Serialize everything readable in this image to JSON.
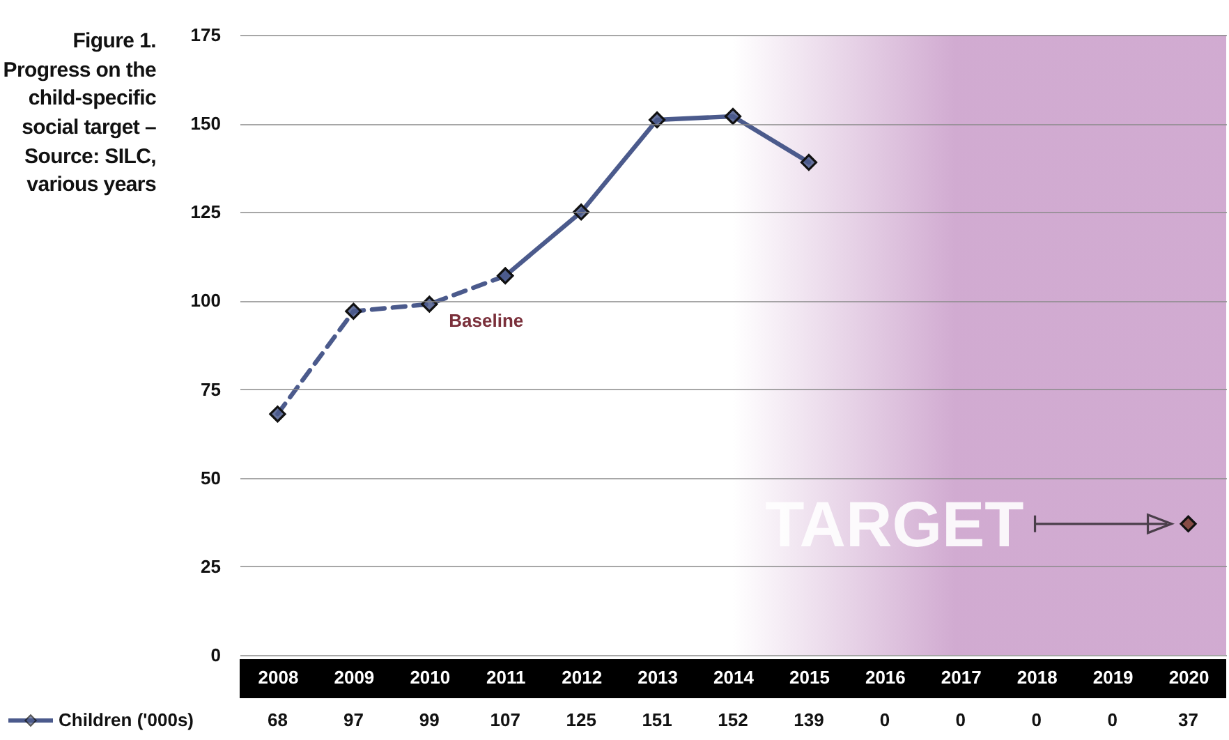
{
  "chart_data": {
    "type": "line",
    "title": "Figure 1. Progress on the child-specific social target – Source: SILC, various years",
    "categories": [
      "2008",
      "2009",
      "2010",
      "2011",
      "2012",
      "2013",
      "2014",
      "2015",
      "2016",
      "2017",
      "2018",
      "2019",
      "2020"
    ],
    "ylim": [
      0,
      175
    ],
    "yticks": [
      0,
      25,
      50,
      75,
      100,
      125,
      150,
      175
    ],
    "grid": "y",
    "legend": "bottom left",
    "marker": "diamond",
    "annotations": [
      {
        "text": "Baseline",
        "x": "2010",
        "y": 99
      },
      {
        "text": "TARGET",
        "x": "2020",
        "y": 37
      }
    ],
    "bands": [
      {
        "axis": "x",
        "from": "2014",
        "to": "2020",
        "color": "#c99cc9"
      }
    ],
    "series": [
      {
        "name": "Children ('000s)",
        "color": "#4b5a8c",
        "line_style": "solid",
        "values": [
          null,
          null,
          null,
          107,
          125,
          151,
          152,
          139,
          null,
          null,
          null,
          null,
          null
        ],
        "value_labels": [
          "68",
          "97",
          "99",
          "107",
          "125",
          "151",
          "152",
          "139",
          "0",
          "0",
          "0",
          "0",
          "37"
        ]
      },
      {
        "color": "#4b5a8c",
        "line_style": "dashed",
        "values": [
          68,
          97,
          99,
          107,
          null,
          null,
          null,
          null,
          null,
          null,
          null,
          null,
          null
        ]
      },
      {
        "type": "scatter",
        "color": "#7a3b2e",
        "values": [
          null,
          null,
          null,
          null,
          null,
          null,
          null,
          null,
          null,
          null,
          null,
          null,
          37
        ]
      }
    ]
  }
}
